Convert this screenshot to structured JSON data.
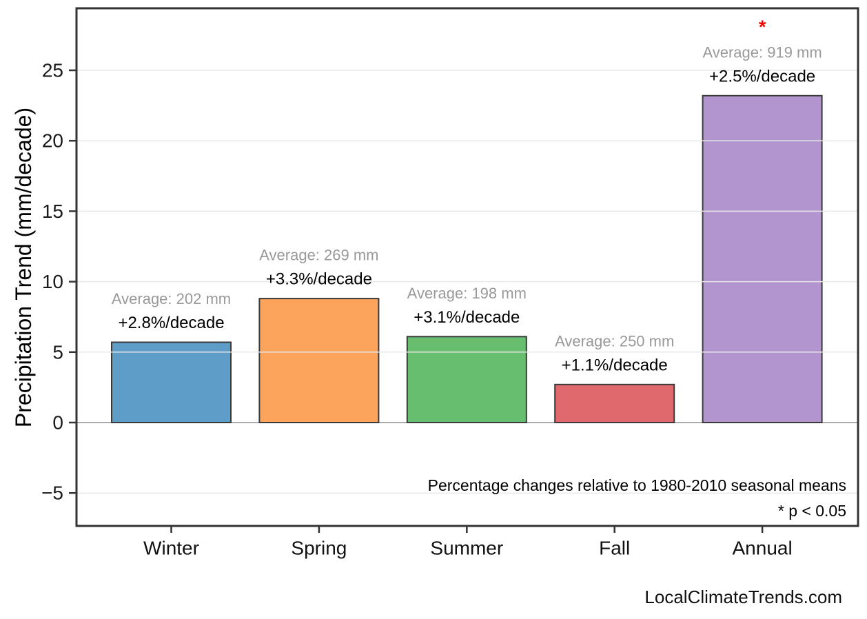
{
  "chart_data": {
    "type": "bar",
    "title": "",
    "categories": [
      "Winter",
      "Spring",
      "Summer",
      "Fall",
      "Annual"
    ],
    "values": [
      5.7,
      8.8,
      6.1,
      2.7,
      23.2
    ],
    "averages_mm": [
      202,
      269,
      198,
      250,
      919
    ],
    "pct_per_decade": [
      2.8,
      3.3,
      3.1,
      1.1,
      2.5
    ],
    "xlabel": "",
    "ylabel": "Precipitation Trend (mm/decade)",
    "ylim": [
      -7.35,
      29.4
    ],
    "yticks": [
      -5,
      0,
      5,
      10,
      15,
      20,
      25
    ],
    "grid": true,
    "legend_position": "none",
    "bar_colors": [
      "#5E9DC8",
      "#FCA45C",
      "#66BE6E",
      "#E0696D",
      "#B294CE"
    ],
    "bar_edge_color": "#3A3A3A",
    "annotations": [
      {
        "average_label": "Average: 202 mm",
        "pct_label": "+2.8%/decade",
        "significant": false
      },
      {
        "average_label": "Average: 269 mm",
        "pct_label": "+3.3%/decade",
        "significant": false
      },
      {
        "average_label": "Average: 198 mm",
        "pct_label": "+3.1%/decade",
        "significant": false
      },
      {
        "average_label": "Average: 250 mm",
        "pct_label": "+1.1%/decade",
        "significant": false
      },
      {
        "average_label": "Average: 919 mm",
        "pct_label": "+2.5%/decade",
        "significant": true
      }
    ],
    "significance_marker": "*",
    "notes": [
      "Percentage changes relative to 1980-2010 seasonal means",
      "* p < 0.05"
    ],
    "watermark": "LocalClimateTrends.com",
    "colors": {
      "annotation_average": "#999999",
      "annotation_pct": "#000000",
      "significance": "#FE0000",
      "grid": "#E8E8E8",
      "zero_line": "#ABABAB",
      "axis": "#333333",
      "tick_label": "#1A1A1A",
      "background": "#FFFFFF"
    }
  }
}
